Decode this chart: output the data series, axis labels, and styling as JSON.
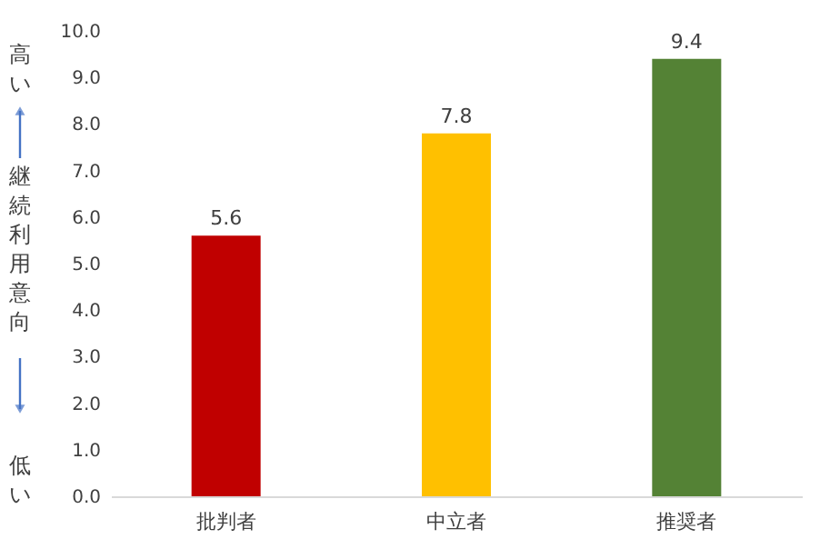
{
  "chart_data": {
    "type": "bar",
    "categories": [
      "批判者",
      "中立者",
      "推奨者"
    ],
    "values": [
      5.6,
      7.8,
      9.4
    ],
    "colors": [
      "#c00000",
      "#ffc000",
      "#548235"
    ],
    "ylabel": "継続利用意向",
    "annotations": [
      "高い",
      "低い"
    ],
    "ylim": [
      0,
      10
    ],
    "yticks": [
      {
        "value": 0,
        "label": "0.0"
      },
      {
        "value": 1,
        "label": "1.0"
      },
      {
        "value": 2,
        "label": "2.0"
      },
      {
        "value": 3,
        "label": "3.0"
      },
      {
        "value": 4,
        "label": "4.0"
      },
      {
        "value": 5,
        "label": "5.0"
      },
      {
        "value": 6,
        "label": "6.0"
      },
      {
        "value": 7,
        "label": "7.0"
      },
      {
        "value": 8,
        "label": "8.0"
      },
      {
        "value": 9,
        "label": "9.0"
      },
      {
        "value": 10,
        "label": "10.0"
      }
    ],
    "data_labels": true,
    "grid": false
  }
}
